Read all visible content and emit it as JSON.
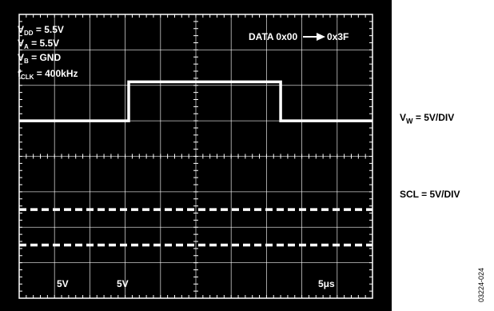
{
  "chart_data": {
    "type": "line",
    "grid": true,
    "divisions": {
      "x": 10,
      "y": 8
    },
    "settings": [
      {
        "sym": "V",
        "sub": "DD",
        "rest": " = 5.5V"
      },
      {
        "sym": "V",
        "sub": "A",
        "rest": " = 5.5V"
      },
      {
        "sym": "V",
        "sub": "B",
        "rest": " = GND"
      },
      {
        "sym": "f",
        "sub": "CLK",
        "rest": " = 400kHz"
      }
    ],
    "annotation": {
      "text1": "DATA 0x00",
      "text2": "0x3F"
    },
    "scale_labels": {
      "ch1": "5V",
      "ch2": "5V",
      "time": "5μs"
    },
    "channel_labels": [
      {
        "sym": "V",
        "sub": "W",
        "rest": " = 5V/DIV"
      },
      {
        "sym": "",
        "sub": "",
        "rest": "SCL = 5V/DIV"
      }
    ],
    "figure_id": "03224-024",
    "series": [
      {
        "role": "vw",
        "points": [
          [
            0,
            5.0
          ],
          [
            3.1,
            5.0
          ],
          [
            3.1,
            6.1
          ],
          [
            7.4,
            6.1
          ],
          [
            7.4,
            5.0
          ],
          [
            10,
            5.0
          ]
        ]
      },
      {
        "role": "scl",
        "level": 2.5
      },
      {
        "role": "scl",
        "level": 1.5
      }
    ],
    "colors": {
      "screen": "#000000",
      "trace": "#ffffff",
      "grid": "#ffffff"
    }
  }
}
